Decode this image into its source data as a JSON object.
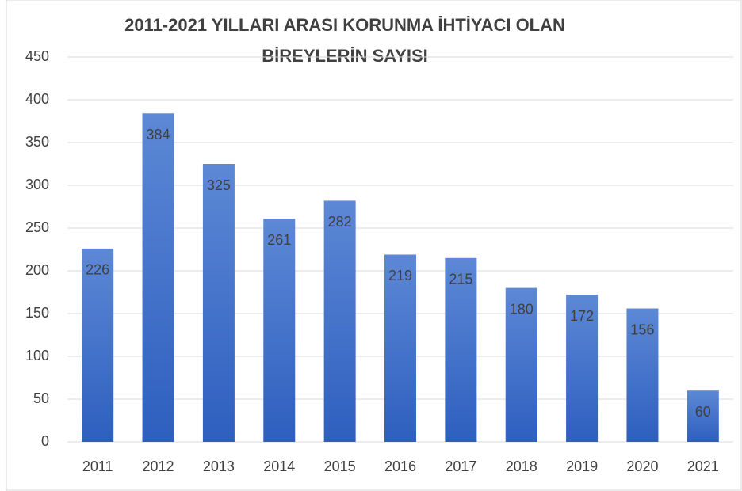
{
  "chart_data": {
    "type": "bar",
    "title": [
      "2011-2021 YILLARI ARASI KORUNMA İHTİYACI OLAN",
      "BİREYLERİN SAYISI"
    ],
    "categories": [
      "2011",
      "2012",
      "2013",
      "2014",
      "2015",
      "2016",
      "2017",
      "2018",
      "2019",
      "2020",
      "2021"
    ],
    "values": [
      226,
      384,
      325,
      261,
      282,
      219,
      215,
      180,
      172,
      156,
      60
    ],
    "color": "#3a6cc8",
    "ylim": [
      0,
      450
    ],
    "yticks": [
      0,
      50,
      100,
      150,
      200,
      250,
      300,
      350,
      400,
      450
    ],
    "grid": true
  }
}
